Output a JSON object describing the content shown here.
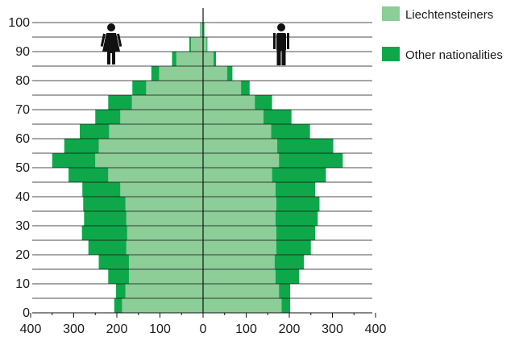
{
  "chart_data": {
    "type": "bar",
    "orientation": "horizontal",
    "layout": "population-pyramid",
    "stacked": true,
    "title": "",
    "xlabel": "",
    "ylabel": "",
    "left_side": "female",
    "right_side": "male",
    "xlim": [
      -400,
      400
    ],
    "ylim": [
      0,
      100
    ],
    "x_ticks": [
      -400,
      -300,
      -200,
      -100,
      0,
      100,
      200,
      300,
      400
    ],
    "x_tick_labels": [
      "400",
      "300",
      "200",
      "100",
      "0",
      "100",
      "200",
      "300",
      "400"
    ],
    "y_ticks": [
      0,
      10,
      20,
      30,
      40,
      50,
      60,
      70,
      80,
      90,
      100
    ],
    "y_tick_labels": [
      "0",
      "10",
      "20",
      "30",
      "40",
      "50",
      "60",
      "70",
      "80",
      "90",
      "100"
    ],
    "age_bins": [
      0,
      5,
      10,
      15,
      20,
      25,
      30,
      35,
      40,
      45,
      50,
      55,
      60,
      65,
      70,
      75,
      80,
      85,
      90,
      95
    ],
    "series": [
      {
        "name": "Liechtensteiners",
        "color": "#8ccd98",
        "female": [
          188,
          180,
          172,
          172,
          178,
          176,
          178,
          180,
          192,
          220,
          250,
          242,
          218,
          192,
          165,
          132,
          102,
          62,
          28,
          6
        ],
        "male": [
          182,
          176,
          168,
          166,
          170,
          170,
          168,
          170,
          168,
          160,
          176,
          172,
          158,
          140,
          120,
          88,
          56,
          24,
          8,
          2
        ]
      },
      {
        "name": "Other nationalities",
        "color": "#0ea84a",
        "female": [
          18,
          22,
          48,
          70,
          88,
          105,
          98,
          98,
          88,
          92,
          100,
          80,
          68,
          58,
          55,
          32,
          18,
          10,
          4,
          1
        ],
        "male": [
          20,
          26,
          55,
          68,
          80,
          90,
          98,
          100,
          92,
          125,
          148,
          130,
          90,
          65,
          40,
          20,
          12,
          6,
          2,
          1
        ]
      }
    ],
    "legend": {
      "position": "top-right",
      "entries": [
        "Liechtensteiners",
        "Other nationalities"
      ]
    },
    "grid": {
      "horizontal": true,
      "vertical": false
    },
    "icons": {
      "female": "female-figure-icon",
      "male": "male-figure-icon"
    }
  }
}
